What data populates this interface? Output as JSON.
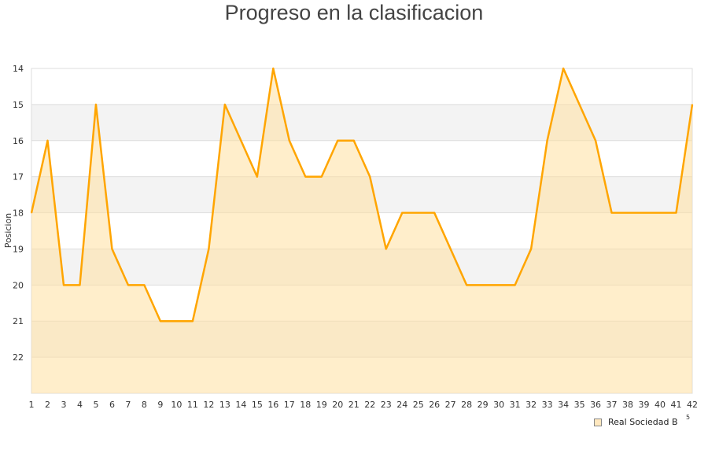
{
  "chart_data": {
    "type": "area",
    "title": "Progreso en la clasificacion",
    "xlabel": "",
    "ylabel": "Posicion",
    "x": [
      1,
      2,
      3,
      4,
      5,
      6,
      7,
      8,
      9,
      10,
      11,
      12,
      13,
      14,
      15,
      16,
      17,
      18,
      19,
      20,
      21,
      22,
      23,
      24,
      25,
      26,
      27,
      28,
      29,
      30,
      31,
      32,
      33,
      34,
      35,
      36,
      37,
      38,
      39,
      40,
      41,
      42
    ],
    "ylim": [
      23,
      14
    ],
    "y_inverted": true,
    "yticks": [
      14,
      15,
      16,
      17,
      18,
      19,
      20,
      21,
      22
    ],
    "grid": true,
    "legend_position": "bottom-right",
    "series": [
      {
        "name": "Real Sociedad B",
        "color": "#ffa500",
        "fill": "#ffe0a0",
        "values": [
          18,
          16,
          20,
          20,
          15,
          19,
          20,
          20,
          21,
          21,
          21,
          19,
          15,
          16,
          17,
          14,
          16,
          17,
          17,
          16,
          16,
          17,
          19,
          18,
          18,
          18,
          19,
          20,
          20,
          20,
          20,
          19,
          16,
          14,
          15,
          16,
          18,
          18,
          18,
          18,
          18,
          15
        ]
      }
    ],
    "stray_label": "5"
  }
}
